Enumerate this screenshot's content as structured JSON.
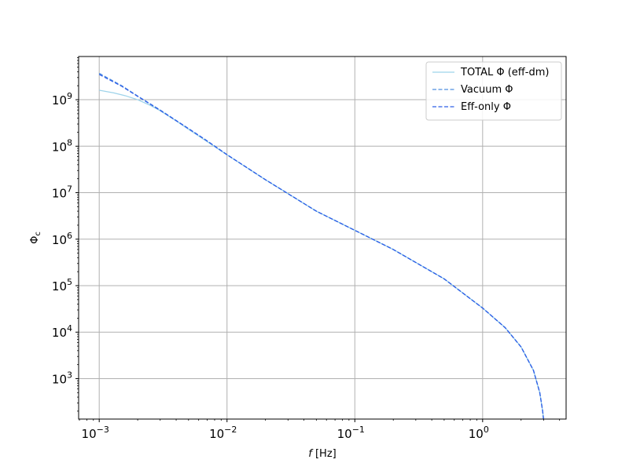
{
  "chart_data": {
    "type": "line",
    "title": "",
    "xlabel": "f [Hz]",
    "ylabel": "Φc",
    "xscale": "log",
    "yscale": "log",
    "xlim": [
      0.00069,
      4.5
    ],
    "ylim": [
      135,
      8500000000
    ],
    "grid": true,
    "legend_position": "top-right",
    "x_ticks": [
      {
        "value": 0.001,
        "base": "10",
        "exp": "−3"
      },
      {
        "value": 0.01,
        "base": "10",
        "exp": "−2"
      },
      {
        "value": 0.1,
        "base": "10",
        "exp": "−1"
      },
      {
        "value": 1,
        "base": "10",
        "exp": "0"
      }
    ],
    "y_ticks": [
      {
        "value": 1000,
        "base": "10",
        "exp": "3"
      },
      {
        "value": 10000,
        "base": "10",
        "exp": "4"
      },
      {
        "value": 100000,
        "base": "10",
        "exp": "5"
      },
      {
        "value": 1000000,
        "base": "10",
        "exp": "6"
      },
      {
        "value": 10000000,
        "base": "10",
        "exp": "7"
      },
      {
        "value": 100000000,
        "base": "10",
        "exp": "8"
      },
      {
        "value": 1000000000,
        "base": "10",
        "exp": "9"
      }
    ],
    "series": [
      {
        "name": "TOTAL Φ (eff-dm)",
        "color": "#9ed3ea",
        "dash": "solid",
        "x": [
          0.001,
          0.0013,
          0.0016,
          0.002,
          0.0025,
          0.003,
          0.004,
          0.005,
          0.007,
          0.01,
          0.02,
          0.05,
          0.1,
          0.2,
          0.5,
          1.0,
          1.5,
          2.0,
          2.5,
          2.8,
          2.95,
          3.0
        ],
        "y": [
          1600000000,
          1400000000,
          1220000000,
          1000000000,
          760000000,
          580000000,
          350000000,
          230000000,
          125000000,
          65000000,
          19000000,
          4000000,
          1550000,
          600000,
          140000,
          33000,
          12500,
          4800,
          1500,
          500,
          200,
          130
        ]
      },
      {
        "name": "Vacuum Φ",
        "color": "#4f8fe0",
        "dash": "dashed",
        "x": [
          0.001,
          0.0015,
          0.002,
          0.003,
          0.005,
          0.007,
          0.01,
          0.02,
          0.05,
          0.1,
          0.2,
          0.5,
          1.0,
          1.5,
          2.0,
          2.5,
          2.8,
          2.95,
          3.0
        ],
        "y": [
          3700000000,
          2000000000,
          1200000000,
          600000000,
          240000000,
          130000000,
          66000000,
          19000000,
          4000000,
          1550000,
          600000,
          140000,
          33000,
          12500,
          4800,
          1500,
          500,
          200,
          130
        ]
      },
      {
        "name": "Eff-only Φ",
        "color": "#2e5fe8",
        "dash": "dashed",
        "x": [
          0.001,
          0.0015,
          0.002,
          0.003,
          0.005,
          0.007,
          0.01,
          0.02,
          0.05,
          0.1,
          0.2,
          0.5,
          1.0,
          1.5,
          2.0,
          2.5,
          2.8,
          2.95,
          3.0
        ],
        "y": [
          3500000000,
          1950000000,
          1180000000,
          590000000,
          238000000,
          129000000,
          65500000,
          19000000,
          4000000,
          1550000,
          600000,
          140000,
          33000,
          12500,
          4800,
          1500,
          500,
          200,
          130
        ]
      }
    ]
  }
}
